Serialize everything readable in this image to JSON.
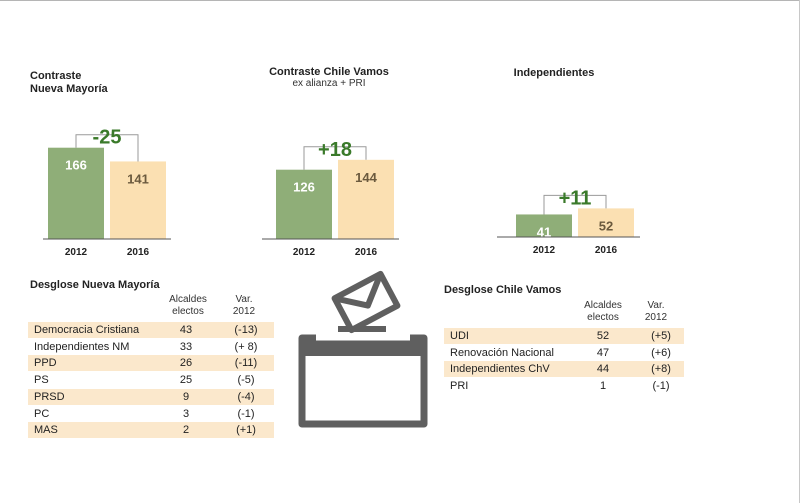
{
  "charts": [
    {
      "title_line1": "Contraste",
      "title_line2": "Nueva Mayoría",
      "subtitle": "",
      "diff": "-25"
    },
    {
      "title_line1": "Contraste Chile Vamos",
      "title_line2": "",
      "subtitle": "ex alianza + PRI",
      "diff": "+18"
    },
    {
      "title_line1": "Independientes",
      "title_line2": "",
      "subtitle": "",
      "diff": "+11"
    }
  ],
  "chart_data": [
    {
      "type": "bar",
      "title": "Contraste Nueva Mayoría",
      "categories": [
        "2012",
        "2016"
      ],
      "values": [
        166,
        141
      ],
      "annotation": "-25",
      "colors": [
        "#8fae78",
        "#fbe0b2"
      ]
    },
    {
      "type": "bar",
      "title": "Contraste Chile Vamos",
      "subtitle": "ex alianza + PRI",
      "categories": [
        "2012",
        "2016"
      ],
      "values": [
        126,
        144
      ],
      "annotation": "+18",
      "colors": [
        "#8fae78",
        "#fbe0b2"
      ]
    },
    {
      "type": "bar",
      "title": "Independientes",
      "categories": [
        "2012",
        "2016"
      ],
      "values": [
        41,
        52
      ],
      "annotation": "+11",
      "colors": [
        "#8fae78",
        "#fbe0b2"
      ]
    }
  ],
  "colors": {
    "bar2012": "#8fae78",
    "bar2016": "#fbe0b2",
    "diff": "#3a7a2a",
    "shade": "#fbe8cc",
    "icon": "#5f5f5f"
  },
  "tables": {
    "nm": {
      "title": "Desglose Nueva Mayoría",
      "col1": "Alcaldes electos",
      "col2": "Var. 2012",
      "rows": [
        {
          "name": "Democracia Cristiana",
          "value": "43",
          "var": "(-13)"
        },
        {
          "name": "Independientes NM",
          "value": "33",
          "var": "(+ 8)"
        },
        {
          "name": "PPD",
          "value": "26",
          "var": "(-11)"
        },
        {
          "name": "PS",
          "value": "25",
          "var": "(-5)"
        },
        {
          "name": "PRSD",
          "value": "9",
          "var": "(-4)"
        },
        {
          "name": "PC",
          "value": "3",
          "var": "(-1)"
        },
        {
          "name": "MAS",
          "value": "2",
          "var": "(+1)"
        }
      ]
    },
    "cv": {
      "title": "Desglose Chile Vamos",
      "col1": "Alcaldes electos",
      "col2": "Var. 2012",
      "rows": [
        {
          "name": "UDI",
          "value": "52",
          "var": "(+5)"
        },
        {
          "name": "Renovación Nacional",
          "value": "47",
          "var": "(+6)"
        },
        {
          "name": "Independientes ChV",
          "value": "44",
          "var": "(+8)"
        },
        {
          "name": "PRI",
          "value": "1",
          "var": "(-1)"
        }
      ]
    }
  },
  "icon": "ballot-box-icon"
}
